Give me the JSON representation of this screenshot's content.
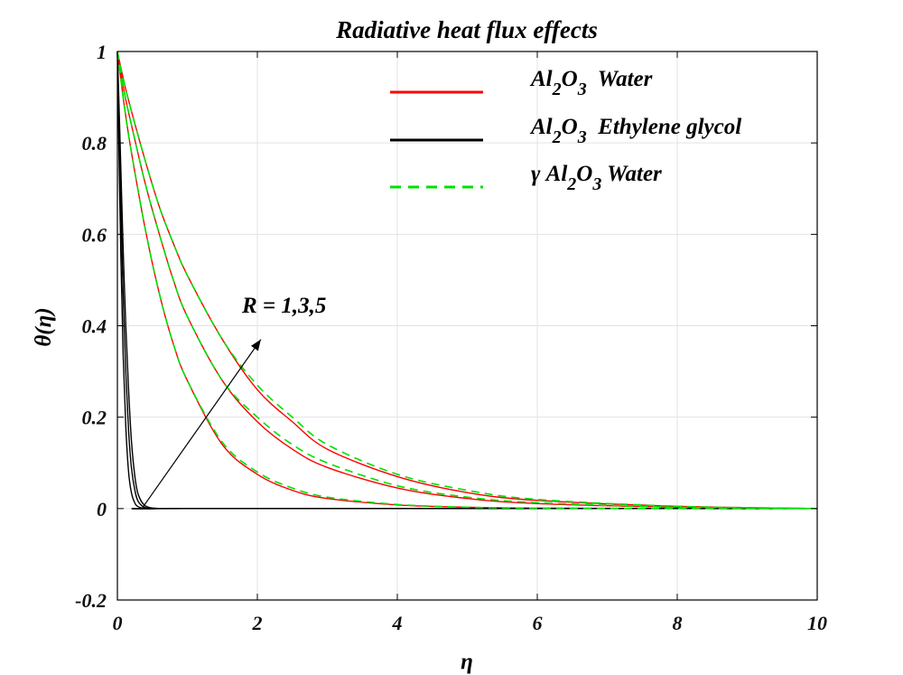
{
  "chart_data": {
    "type": "line",
    "title": "Radiative heat flux effects",
    "xlabel": "η",
    "ylabel": "θ(η)",
    "xlim": [
      0,
      10
    ],
    "ylim": [
      -0.2,
      1
    ],
    "xticks": [
      0,
      2,
      4,
      6,
      8,
      10
    ],
    "yticks": [
      -0.2,
      0,
      0.2,
      0.4,
      0.6,
      0.8,
      1
    ],
    "xtick_labels": [
      "0",
      "2",
      "4",
      "6",
      "8",
      "10"
    ],
    "ytick_labels": [
      "-0.2",
      "0",
      "0.2",
      "0.4",
      "0.6",
      "0.8",
      "1"
    ],
    "grid": true,
    "legend_position": "top-right",
    "legend": [
      {
        "label_parts": [
          "Al",
          "2",
          "O",
          "3",
          "  Water"
        ],
        "color": "#ff0000",
        "style": "solid"
      },
      {
        "label_parts": [
          "Al",
          "2",
          "O",
          "3",
          "  Ethylene glycol"
        ],
        "color": "#000000",
        "style": "solid"
      },
      {
        "label_parts": [
          "γ Al",
          "2",
          "O",
          "3",
          " Water"
        ],
        "color": "#00e000",
        "style": "dashed"
      }
    ],
    "annotation": {
      "text": "R = 1,3,5",
      "arrow_from": [
        0.35,
        0.0
      ],
      "arrow_to": [
        2.05,
        0.37
      ]
    },
    "series": [
      {
        "name": "Al2O3 Water",
        "color": "#ff0000",
        "style": "solid",
        "curves": [
          {
            "R": 1,
            "x": [
              0,
              0.1,
              0.2,
              0.4,
              0.6,
              0.8,
              1.0,
              1.5,
              2.0,
              2.5,
              3.0,
              4.0,
              5.0,
              6.0,
              8.0,
              10.0
            ],
            "y": [
              1.0,
              0.88,
              0.78,
              0.61,
              0.47,
              0.36,
              0.28,
              0.14,
              0.075,
              0.04,
              0.022,
              0.008,
              0.003,
              0.001,
              0.0,
              0.0
            ]
          },
          {
            "R": 3,
            "x": [
              0,
              0.1,
              0.2,
              0.4,
              0.6,
              0.8,
              1.0,
              1.5,
              2.0,
              2.5,
              3.0,
              4.0,
              5.0,
              6.0,
              8.0,
              10.0
            ],
            "y": [
              1.0,
              0.91,
              0.84,
              0.71,
              0.6,
              0.5,
              0.42,
              0.28,
              0.19,
              0.13,
              0.09,
              0.045,
              0.022,
              0.011,
              0.003,
              0.0
            ]
          },
          {
            "R": 5,
            "x": [
              0,
              0.1,
              0.2,
              0.4,
              0.6,
              0.8,
              1.0,
              1.5,
              2.0,
              2.5,
              3.0,
              4.0,
              5.0,
              6.0,
              8.0,
              10.0
            ],
            "y": [
              1.0,
              0.93,
              0.87,
              0.76,
              0.66,
              0.58,
              0.51,
              0.37,
              0.26,
              0.19,
              0.13,
              0.07,
              0.035,
              0.018,
              0.005,
              0.0
            ]
          }
        ]
      },
      {
        "name": "Al2O3 Ethylene glycol",
        "color": "#000000",
        "style": "solid",
        "curves": [
          {
            "R": 1,
            "x": [
              0,
              0.02,
              0.05,
              0.08,
              0.12,
              0.16,
              0.2,
              0.25,
              0.3,
              0.4,
              0.6,
              1.0,
              10.0
            ],
            "y": [
              1.0,
              0.8,
              0.55,
              0.35,
              0.18,
              0.08,
              0.035,
              0.012,
              0.004,
              0.0,
              0.0,
              0.0,
              0.0
            ]
          },
          {
            "R": 3,
            "x": [
              0,
              0.02,
              0.05,
              0.08,
              0.12,
              0.16,
              0.2,
              0.25,
              0.3,
              0.4,
              0.6,
              1.0,
              10.0
            ],
            "y": [
              1.0,
              0.86,
              0.66,
              0.48,
              0.3,
              0.17,
              0.09,
              0.04,
              0.015,
              0.002,
              0.0,
              0.0,
              0.0
            ]
          },
          {
            "R": 5,
            "x": [
              0,
              0.02,
              0.05,
              0.08,
              0.12,
              0.16,
              0.2,
              0.25,
              0.3,
              0.4,
              0.6,
              1.0,
              10.0
            ],
            "y": [
              1.0,
              0.9,
              0.74,
              0.58,
              0.4,
              0.26,
              0.15,
              0.07,
              0.03,
              0.006,
              0.0,
              0.0,
              0.0
            ]
          }
        ]
      },
      {
        "name": "γ Al2O3 Water",
        "color": "#00e000",
        "style": "dashed",
        "curves": [
          {
            "R": 1,
            "x": [
              0,
              0.1,
              0.2,
              0.4,
              0.6,
              0.8,
              1.0,
              1.5,
              2.0,
              2.5,
              3.0,
              4.0,
              5.0,
              6.0,
              8.0,
              10.0
            ],
            "y": [
              1.0,
              0.88,
              0.78,
              0.61,
              0.47,
              0.36,
              0.28,
              0.145,
              0.08,
              0.045,
              0.025,
              0.009,
              0.003,
              0.001,
              0.0,
              0.0
            ]
          },
          {
            "R": 3,
            "x": [
              0,
              0.1,
              0.2,
              0.4,
              0.6,
              0.8,
              1.0,
              1.5,
              2.0,
              2.5,
              3.0,
              4.0,
              5.0,
              6.0,
              8.0,
              10.0
            ],
            "y": [
              1.0,
              0.91,
              0.84,
              0.71,
              0.6,
              0.5,
              0.42,
              0.28,
              0.2,
              0.14,
              0.1,
              0.05,
              0.025,
              0.013,
              0.003,
              0.0
            ]
          },
          {
            "R": 5,
            "x": [
              0,
              0.1,
              0.2,
              0.4,
              0.6,
              0.8,
              1.0,
              1.5,
              2.0,
              2.5,
              3.0,
              4.0,
              5.0,
              6.0,
              8.0,
              10.0
            ],
            "y": [
              1.0,
              0.93,
              0.87,
              0.76,
              0.66,
              0.58,
              0.51,
              0.37,
              0.27,
              0.2,
              0.14,
              0.075,
              0.04,
              0.02,
              0.005,
              0.0
            ]
          }
        ]
      }
    ]
  }
}
